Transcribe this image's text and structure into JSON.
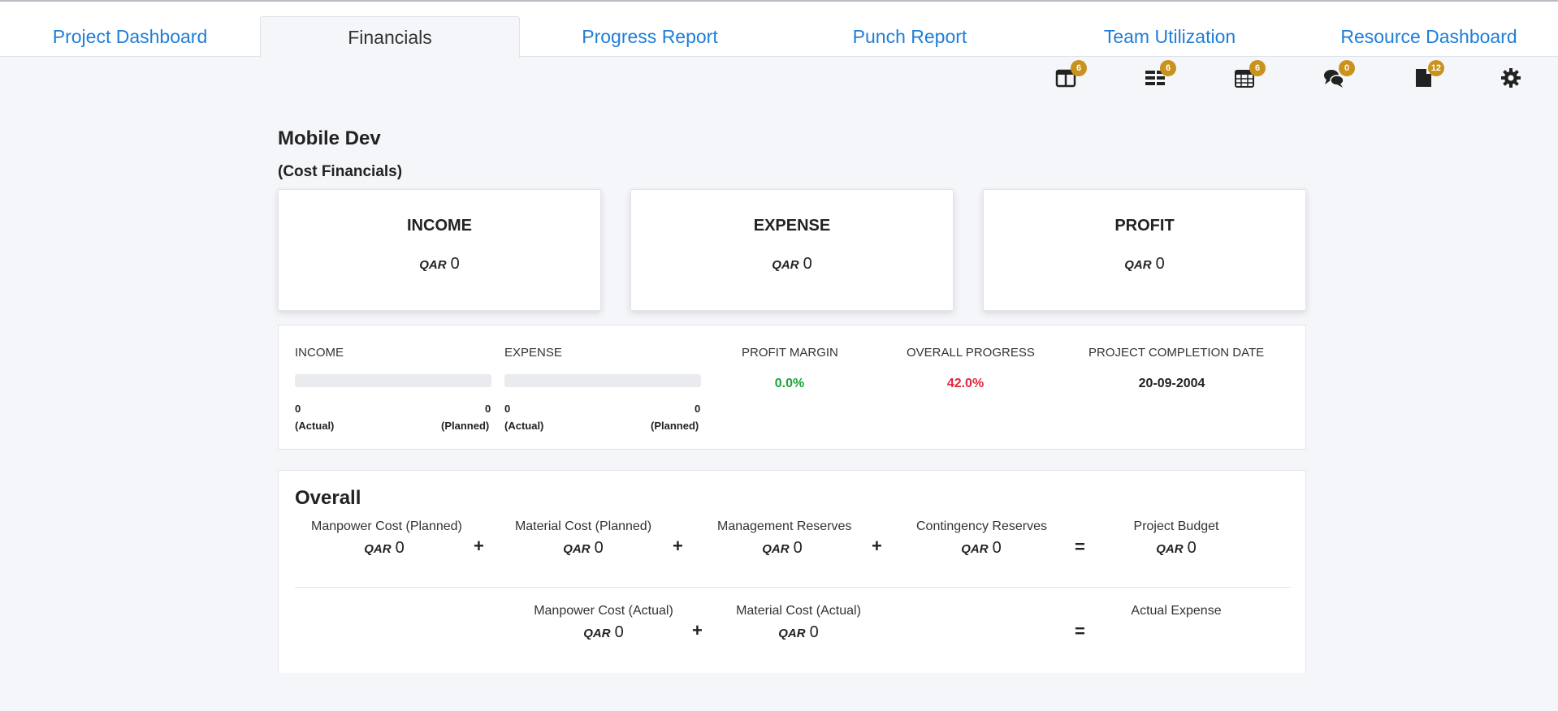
{
  "tabs": [
    {
      "label": "Project Dashboard"
    },
    {
      "label": "Financials"
    },
    {
      "label": "Progress Report"
    },
    {
      "label": "Punch Report"
    },
    {
      "label": "Team Utilization"
    },
    {
      "label": "Resource Dashboard"
    }
  ],
  "toolbar": {
    "icons": [
      {
        "name": "board-icon",
        "badge": "6"
      },
      {
        "name": "list-icon",
        "badge": "6"
      },
      {
        "name": "calendar-icon",
        "badge": "6"
      },
      {
        "name": "comments-icon",
        "badge": "0"
      },
      {
        "name": "document-icon",
        "badge": "12"
      },
      {
        "name": "gear-icon"
      }
    ]
  },
  "project": {
    "name": "Mobile Dev",
    "subtitle": "(Cost Financials)"
  },
  "currency": "QAR",
  "cards": {
    "income": {
      "title": "INCOME",
      "value": "0"
    },
    "expense": {
      "title": "EXPENSE",
      "value": "0"
    },
    "profit": {
      "title": "PROFIT",
      "value": "0"
    }
  },
  "summary": {
    "income": {
      "label": "INCOME",
      "actual": "0",
      "planned": "0",
      "actual_label": "(Actual)",
      "planned_label": "(Planned)",
      "progress": 0
    },
    "expense": {
      "label": "EXPENSE",
      "actual": "0",
      "planned": "0",
      "actual_label": "(Actual)",
      "planned_label": "(Planned)",
      "progress": 0
    },
    "profit_margin": {
      "label": "PROFIT MARGIN",
      "value": "0.0%"
    },
    "overall_progress": {
      "label": "OVERALL PROGRESS",
      "value": "42.0%"
    },
    "completion_date": {
      "label": "PROJECT COMPLETION DATE",
      "value": "20-09-2004"
    }
  },
  "overall": {
    "title": "Overall",
    "row1": {
      "manpower_planned": {
        "label": "Manpower Cost (Planned)",
        "value": "0"
      },
      "material_planned": {
        "label": "Material Cost (Planned)",
        "value": "0"
      },
      "management_reserves": {
        "label": "Management Reserves",
        "value": "0"
      },
      "contingency_reserves": {
        "label": "Contingency Reserves",
        "value": "0"
      },
      "project_budget": {
        "label": "Project Budget",
        "value": "0"
      }
    },
    "row2": {
      "manpower_actual": {
        "label": "Manpower Cost (Actual)",
        "value": "0"
      },
      "material_actual": {
        "label": "Material Cost (Actual)",
        "value": "0"
      },
      "actual_expense": {
        "label": "Actual Expense"
      }
    },
    "operators": {
      "plus": "+",
      "equals": "="
    }
  },
  "colors": {
    "accent": "#1f7ed8",
    "badge": "#c8921c",
    "negative": "#e0283c",
    "positive": "#1ba338"
  }
}
